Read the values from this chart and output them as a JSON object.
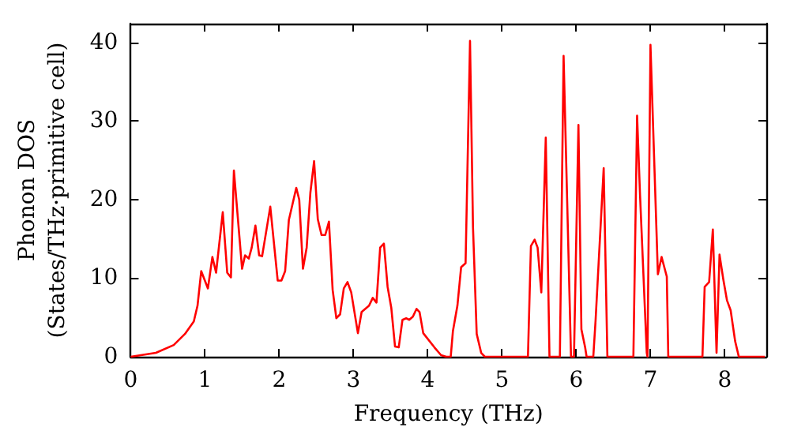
{
  "chart_data": {
    "type": "line",
    "xlabel": "Frequency (THz)",
    "ylabel": "Phonon DOS\n(States/THz·primitive cell)",
    "x": [
      0,
      0.34,
      0.58,
      0.73,
      0.85,
      0.9,
      0.95,
      1.04,
      1.1,
      1.15,
      1.24,
      1.3,
      1.35,
      1.39,
      1.5,
      1.54,
      1.59,
      1.63,
      1.68,
      1.73,
      1.77,
      1.88,
      1.98,
      2.03,
      2.08,
      2.13,
      2.23,
      2.27,
      2.32,
      2.37,
      2.42,
      2.47,
      2.52,
      2.57,
      2.62,
      2.67,
      2.72,
      2.77,
      2.82,
      2.87,
      2.92,
      2.97,
      3.06,
      3.11,
      3.21,
      3.26,
      3.31,
      3.36,
      3.41,
      3.46,
      3.51,
      3.56,
      3.61,
      3.66,
      3.71,
      3.75,
      3.8,
      3.85,
      3.89,
      3.94,
      4.09,
      4.18,
      4.25,
      4.31,
      4.34,
      4.4,
      4.45,
      4.51,
      4.57,
      4.61,
      4.66,
      4.72,
      4.77,
      5.35,
      5.39,
      5.44,
      5.48,
      5.53,
      5.59,
      5.64,
      5.78,
      5.83,
      5.93,
      5.97,
      6.03,
      6.07,
      6.12,
      6.14,
      6.23,
      6.26,
      6.37,
      6.42,
      6.77,
      6.82,
      6.86,
      6.95,
      6.96,
      7.0,
      7.1,
      7.15,
      7.22,
      7.24,
      7.7,
      7.73,
      7.79,
      7.84,
      7.89,
      7.93,
      7.98,
      8.03,
      8.08,
      8.14,
      8.19,
      8.54
    ],
    "values": [
      0,
      0.5,
      1.5,
      2.9,
      4.5,
      6.5,
      10.9,
      8.7,
      12.7,
      10.7,
      18.4,
      10.7,
      10.1,
      23.7,
      11.2,
      12.9,
      12.5,
      13.9,
      16.7,
      12.9,
      12.8,
      19.1,
      9.7,
      9.7,
      10.9,
      17.4,
      21.5,
      20,
      11.2,
      13.9,
      20.9,
      24.9,
      17.5,
      15.5,
      15.5,
      17.2,
      8.5,
      4.9,
      5.4,
      8.7,
      9.5,
      8.2,
      3,
      5.7,
      6.5,
      7.5,
      6.9,
      13.9,
      14.4,
      8.9,
      6.2,
      1.3,
      1.2,
      4.7,
      4.9,
      4.7,
      5.1,
      6.1,
      5.7,
      3,
      1.2,
      0.2,
      0,
      0,
      3.3,
      6.5,
      11.4,
      11.9,
      40.2,
      16.5,
      2.9,
      0.5,
      0,
      0,
      14.1,
      14.9,
      13.9,
      8.2,
      27.9,
      0,
      0,
      38.3,
      0,
      0,
      29.5,
      3.5,
      1.2,
      0,
      0,
      4.5,
      24,
      0,
      0,
      30.7,
      20.5,
      0.5,
      0,
      39.7,
      10.5,
      12.7,
      10.2,
      0,
      0,
      8.9,
      9.5,
      16.2,
      0.5,
      13,
      9.9,
      7.2,
      5.9,
      2,
      0,
      0
    ],
    "color": "#ff0000",
    "marker": "none",
    "line_style": "solid",
    "grid": false,
    "xlim": [
      0,
      8.56
    ],
    "xticks": [
      0,
      1,
      2,
      3,
      4,
      5,
      6,
      7,
      8
    ],
    "ylim": [
      0,
      42.4
    ],
    "yticks": [
      0,
      10,
      20,
      30,
      40
    ]
  }
}
